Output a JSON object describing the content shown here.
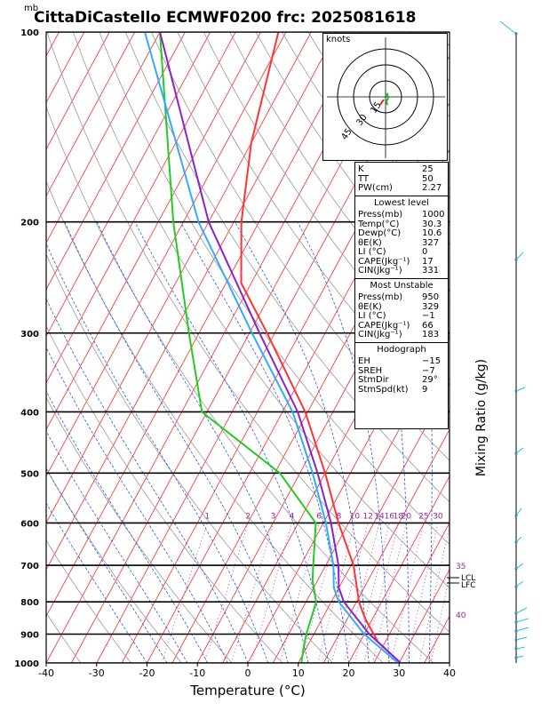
{
  "header": {
    "unit_mb": "mb",
    "title": "CittaDiCastello ECMWF0200 frc: 2025081618"
  },
  "chart_data": {
    "type": "line",
    "title": "CittaDiCastello ECMWF0200 frc: 2025081618",
    "xlabel": "Temperature (°C)",
    "ylabel": "Mixing Ratio (g/kg)",
    "x_range": [
      -40,
      40
    ],
    "x_ticks": [
      -40,
      -30,
      -20,
      -10,
      0,
      10,
      20,
      30,
      40
    ],
    "p_range": [
      1000,
      100
    ],
    "p_ticks": [
      1000,
      900,
      800,
      700,
      600,
      500,
      400,
      300,
      200,
      100
    ],
    "mixing_ratio_labels_upper": [
      "1",
      "2",
      "3",
      "4",
      "6",
      "8",
      "10",
      "12",
      "14",
      "16",
      "18",
      "20",
      "25",
      "30"
    ],
    "mixing_ratio_labels_side": [
      "35",
      "40"
    ],
    "lcl_label": "LCL",
    "lfc_label": "LFC",
    "series": [
      {
        "role": "temperature",
        "color": "#ff3333",
        "points": [
          [
            1000,
            30.3
          ],
          [
            925,
            23.5
          ],
          [
            850,
            18.5
          ],
          [
            800,
            15.5
          ],
          [
            700,
            10.5
          ],
          [
            600,
            3.0
          ],
          [
            500,
            -5.0
          ],
          [
            400,
            -15.5
          ],
          [
            300,
            -31.5
          ],
          [
            250,
            -42.0
          ],
          [
            200,
            -48.5
          ],
          [
            150,
            -55.0
          ],
          [
            100,
            -61.5
          ]
        ]
      },
      {
        "role": "dewpoint",
        "color": "#22cc22",
        "points": [
          [
            1000,
            10.6
          ],
          [
            950,
            9.5
          ],
          [
            900,
            8.5
          ],
          [
            800,
            7.0
          ],
          [
            740,
            4.0
          ],
          [
            700,
            2.5
          ],
          [
            600,
            -1.5
          ],
          [
            500,
            -14.0
          ],
          [
            400,
            -36.0
          ],
          [
            300,
            -47.0
          ],
          [
            200,
            -62.0
          ],
          [
            100,
            -85.0
          ]
        ]
      },
      {
        "role": "parcel",
        "color": "#8822cc",
        "points": [
          [
            1000,
            30.3
          ],
          [
            900,
            21.0
          ],
          [
            800,
            12.5
          ],
          [
            760,
            10.0
          ],
          [
            700,
            7.5
          ],
          [
            600,
            1.5
          ],
          [
            500,
            -6.5
          ],
          [
            400,
            -17.0
          ],
          [
            300,
            -33.0
          ],
          [
            200,
            -55.0
          ],
          [
            100,
            -85.0
          ]
        ]
      },
      {
        "role": "virtual-temperature",
        "color": "#33aaff",
        "points": [
          [
            1000,
            29.8
          ],
          [
            900,
            20.0
          ],
          [
            800,
            11.5
          ],
          [
            760,
            9.0
          ],
          [
            700,
            6.5
          ],
          [
            600,
            0.5
          ],
          [
            500,
            -7.5
          ],
          [
            400,
            -18.0
          ],
          [
            300,
            -34.5
          ],
          [
            200,
            -57.0
          ],
          [
            100,
            -88.0
          ]
        ]
      }
    ]
  },
  "hodograph": {
    "units": "knots",
    "ring_labels": [
      "15",
      "30",
      "45"
    ]
  },
  "indices": {
    "top": [
      [
        "K",
        "25"
      ],
      [
        "TT",
        "50"
      ],
      [
        "PW(cm)",
        "2.27"
      ]
    ],
    "lowest_title": "Lowest level",
    "lowest": [
      [
        "Press(mb)",
        "1000"
      ],
      [
        "Temp(°C)",
        "30.3"
      ],
      [
        "Dewp(°C)",
        "10.6"
      ],
      [
        "θE(K)",
        "327"
      ],
      [
        "LI (°C)",
        "0"
      ],
      [
        "CAPE(Jkg⁻¹)",
        "17"
      ],
      [
        "CIN(Jkg⁻¹)",
        "331"
      ]
    ],
    "unstable_title": "Most Unstable",
    "unstable": [
      [
        "Press(mb)",
        "950"
      ],
      [
        "θE(K)",
        "329"
      ],
      [
        "LI (°C)",
        "−1"
      ],
      [
        "CAPE(Jkg⁻¹)",
        "66"
      ],
      [
        "CIN(Jkg⁻¹)",
        "183"
      ]
    ],
    "hodo_title": "Hodograph",
    "hodo": [
      [
        "EH",
        "−15"
      ],
      [
        "SREH",
        "−7"
      ],
      [
        "StmDir",
        "29°"
      ],
      [
        "StmSpd(kt)",
        "9"
      ]
    ]
  }
}
